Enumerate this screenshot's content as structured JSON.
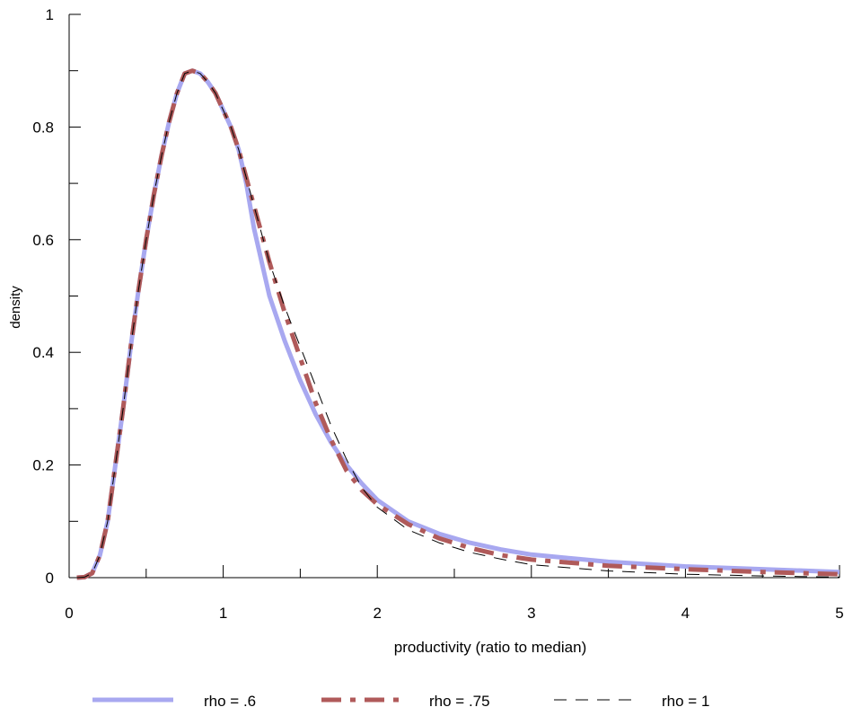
{
  "chart_data": {
    "type": "line",
    "title": "",
    "xlabel": "productivity (ratio to median)",
    "ylabel": "density",
    "xlim": [
      0,
      5
    ],
    "ylim": [
      0,
      1
    ],
    "x_ticks": [
      "0",
      "1",
      "2",
      "3",
      "4",
      "5"
    ],
    "y_ticks": [
      "0",
      "0.2",
      "0.4",
      "0.6",
      "0.8",
      "1"
    ],
    "grid": false,
    "legend_position": "bottom",
    "series": [
      {
        "name": "rho = .6",
        "color": "#a8a8f0",
        "style": "solid",
        "points": [
          [
            0.05,
            0.0
          ],
          [
            0.1,
            0.001
          ],
          [
            0.15,
            0.008
          ],
          [
            0.2,
            0.04
          ],
          [
            0.25,
            0.1
          ],
          [
            0.3,
            0.2
          ],
          [
            0.35,
            0.3
          ],
          [
            0.4,
            0.41
          ],
          [
            0.45,
            0.51
          ],
          [
            0.5,
            0.6
          ],
          [
            0.55,
            0.68
          ],
          [
            0.6,
            0.75
          ],
          [
            0.65,
            0.81
          ],
          [
            0.7,
            0.86
          ],
          [
            0.75,
            0.895
          ],
          [
            0.8,
            0.9
          ],
          [
            0.85,
            0.895
          ],
          [
            0.9,
            0.88
          ],
          [
            0.95,
            0.86
          ],
          [
            1.0,
            0.83
          ],
          [
            1.05,
            0.8
          ],
          [
            1.1,
            0.76
          ],
          [
            1.15,
            0.7
          ],
          [
            1.2,
            0.62
          ],
          [
            1.25,
            0.56
          ],
          [
            1.3,
            0.5
          ],
          [
            1.4,
            0.42
          ],
          [
            1.5,
            0.35
          ],
          [
            1.6,
            0.29
          ],
          [
            1.7,
            0.24
          ],
          [
            1.8,
            0.2
          ],
          [
            1.9,
            0.167
          ],
          [
            2.0,
            0.138
          ],
          [
            2.2,
            0.1
          ],
          [
            2.4,
            0.078
          ],
          [
            2.6,
            0.062
          ],
          [
            2.8,
            0.05
          ],
          [
            3.0,
            0.041
          ],
          [
            3.5,
            0.028
          ],
          [
            4.0,
            0.02
          ],
          [
            4.5,
            0.015
          ],
          [
            5.0,
            0.01
          ]
        ]
      },
      {
        "name": "rho = .75",
        "color": "#b05a5a",
        "style": "dash-dot",
        "points": [
          [
            0.05,
            0.0
          ],
          [
            0.1,
            0.001
          ],
          [
            0.15,
            0.008
          ],
          [
            0.2,
            0.04
          ],
          [
            0.25,
            0.1
          ],
          [
            0.3,
            0.2
          ],
          [
            0.35,
            0.3
          ],
          [
            0.4,
            0.41
          ],
          [
            0.45,
            0.51
          ],
          [
            0.5,
            0.6
          ],
          [
            0.55,
            0.68
          ],
          [
            0.6,
            0.75
          ],
          [
            0.65,
            0.81
          ],
          [
            0.7,
            0.86
          ],
          [
            0.75,
            0.895
          ],
          [
            0.8,
            0.9
          ],
          [
            0.85,
            0.895
          ],
          [
            0.9,
            0.88
          ],
          [
            0.95,
            0.86
          ],
          [
            1.0,
            0.83
          ],
          [
            1.05,
            0.8
          ],
          [
            1.1,
            0.76
          ],
          [
            1.15,
            0.71
          ],
          [
            1.2,
            0.66
          ],
          [
            1.25,
            0.61
          ],
          [
            1.3,
            0.56
          ],
          [
            1.4,
            0.47
          ],
          [
            1.5,
            0.39
          ],
          [
            1.6,
            0.31
          ],
          [
            1.7,
            0.245
          ],
          [
            1.8,
            0.19
          ],
          [
            1.9,
            0.155
          ],
          [
            2.0,
            0.13
          ],
          [
            2.2,
            0.095
          ],
          [
            2.4,
            0.07
          ],
          [
            2.6,
            0.053
          ],
          [
            2.8,
            0.04
          ],
          [
            3.0,
            0.032
          ],
          [
            3.5,
            0.021
          ],
          [
            4.0,
            0.015
          ],
          [
            4.5,
            0.01
          ],
          [
            5.0,
            0.006
          ]
        ]
      },
      {
        "name": "rho = 1",
        "color": "#000000",
        "style": "dashed",
        "points": [
          [
            0.05,
            0.0
          ],
          [
            0.1,
            0.001
          ],
          [
            0.15,
            0.008
          ],
          [
            0.2,
            0.04
          ],
          [
            0.25,
            0.1
          ],
          [
            0.3,
            0.2
          ],
          [
            0.35,
            0.3
          ],
          [
            0.4,
            0.41
          ],
          [
            0.45,
            0.51
          ],
          [
            0.5,
            0.6
          ],
          [
            0.55,
            0.68
          ],
          [
            0.6,
            0.75
          ],
          [
            0.65,
            0.81
          ],
          [
            0.7,
            0.86
          ],
          [
            0.75,
            0.895
          ],
          [
            0.8,
            0.9
          ],
          [
            0.85,
            0.895
          ],
          [
            0.9,
            0.88
          ],
          [
            0.95,
            0.86
          ],
          [
            1.0,
            0.83
          ],
          [
            1.05,
            0.8
          ],
          [
            1.1,
            0.76
          ],
          [
            1.15,
            0.71
          ],
          [
            1.2,
            0.66
          ],
          [
            1.25,
            0.61
          ],
          [
            1.3,
            0.56
          ],
          [
            1.4,
            0.48
          ],
          [
            1.5,
            0.41
          ],
          [
            1.6,
            0.34
          ],
          [
            1.7,
            0.27
          ],
          [
            1.8,
            0.21
          ],
          [
            1.9,
            0.16
          ],
          [
            2.0,
            0.125
          ],
          [
            2.2,
            0.085
          ],
          [
            2.4,
            0.062
          ],
          [
            2.6,
            0.045
          ],
          [
            2.8,
            0.033
          ],
          [
            3.0,
            0.023
          ],
          [
            3.5,
            0.012
          ],
          [
            4.0,
            0.006
          ],
          [
            4.5,
            0.003
          ],
          [
            5.0,
            0.001
          ]
        ]
      }
    ]
  }
}
